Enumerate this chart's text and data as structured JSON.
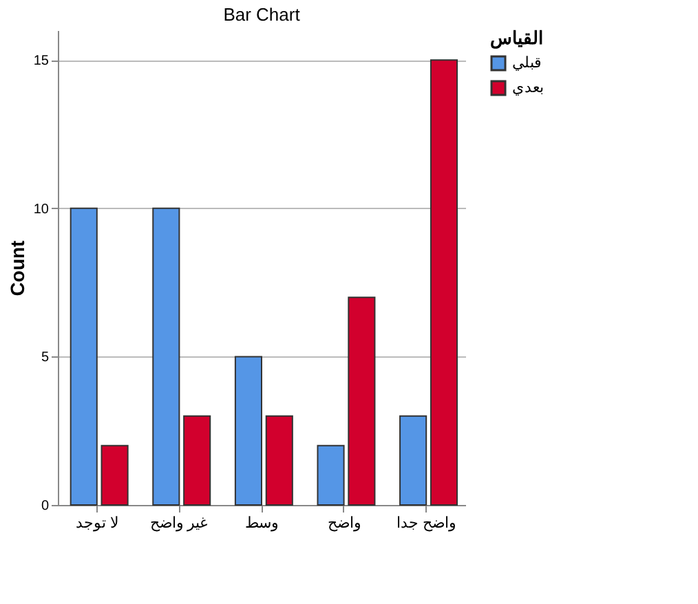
{
  "chart_data": {
    "type": "bar",
    "title": "Bar Chart",
    "ylabel": "Count",
    "legend_title": "القياس",
    "categories": [
      "لا توجد",
      "غير واضح",
      "وسط",
      "واضح",
      "واضح جدا"
    ],
    "series": [
      {
        "name": "قبلي",
        "color": "#5596e6",
        "values": [
          10,
          10,
          5,
          2,
          3
        ]
      },
      {
        "name": "بعدي",
        "color": "#d2002d",
        "values": [
          2,
          3,
          3,
          7,
          15
        ]
      }
    ],
    "ylim": [
      0,
      16
    ],
    "yticks": [
      0,
      5,
      10,
      15
    ],
    "grid": "y",
    "legend": "top right"
  }
}
